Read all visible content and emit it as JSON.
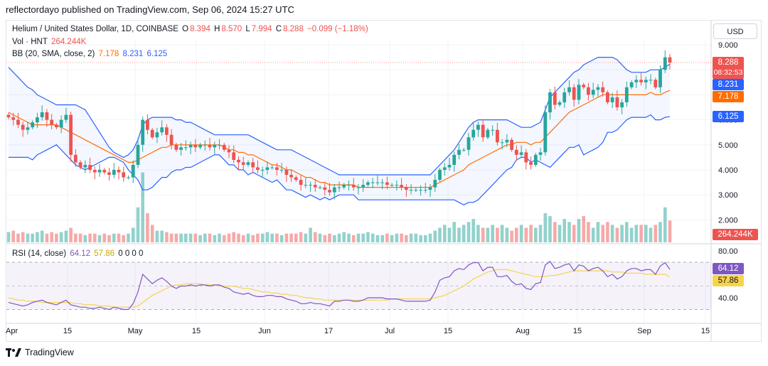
{
  "header": {
    "text": "reflectordayo published on TradingView.com, Sep 06, 2024 15:27 UTC"
  },
  "legend": {
    "symbol": "Helium / United States Dollar, 1D, COINBASE",
    "ohlc": {
      "o_label": "O",
      "o": "8.394",
      "h_label": "H",
      "h": "8.570",
      "l_label": "L",
      "l": "7.994",
      "c_label": "C",
      "c": "8.288",
      "chg": "−0.099 (−1.18%)"
    },
    "vol_label": "Vol · HNT",
    "vol_value": "264.244K",
    "bb_label": "BB (20, SMA, close, 2)",
    "bb_basis": "7.178",
    "bb_upper": "8.231",
    "bb_lower": "6.125",
    "rsi_label": "RSI (14, close)",
    "rsi_value": "64.12",
    "rsi_ma": "57.86",
    "rsi_extra": "0 0 0 0"
  },
  "currency_button": "USD",
  "price_tags": {
    "last": "8.288",
    "countdown": "08:32:53",
    "upper": "8.231",
    "basis": "7.178",
    "lower": "6.125",
    "volume": "264.244K",
    "rsi": "64.12",
    "rsi_ma": "57.86"
  },
  "footer": {
    "brand": "TradingView"
  },
  "colors": {
    "up": "#26a69a",
    "down": "#ef5350",
    "bb_band": "#2962ff",
    "bb_basis": "#ff6d00",
    "rsi": "#7e57c2",
    "rsi_ma": "#f7d44c"
  },
  "chart_data": [
    {
      "type": "candlestick",
      "title": "Helium / United States Dollar, 1D, COINBASE",
      "ylim": [
        2.0,
        9.0
      ],
      "y_ticks": [
        "9.000",
        "8.000",
        "7.000",
        "6.000",
        "5.000",
        "4.000",
        "3.000",
        "2.000"
      ],
      "x_ticks": [
        "Apr",
        "15",
        "May",
        "15",
        "Jun",
        "17",
        "Jul",
        "15",
        "Aug",
        "15",
        "Sep",
        "15"
      ],
      "close": [
        6.1,
        6.0,
        5.8,
        5.6,
        5.7,
        5.9,
        6.1,
        6.3,
        6.0,
        5.8,
        5.7,
        6.0,
        6.2,
        4.6,
        4.3,
        4.1,
        4.2,
        4.0,
        3.9,
        4.0,
        3.9,
        3.8,
        4.0,
        3.9,
        3.7,
        3.7,
        4.2,
        5.0,
        6.0,
        5.6,
        5.3,
        5.5,
        5.7,
        5.4,
        5.0,
        4.8,
        4.9,
        4.9,
        5.0,
        4.9,
        5.0,
        5.0,
        4.9,
        5.0,
        5.0,
        4.8,
        4.7,
        4.4,
        4.3,
        4.2,
        4.3,
        4.1,
        4.0,
        4.0,
        4.1,
        4.1,
        4.0,
        4.0,
        3.8,
        3.7,
        3.6,
        3.4,
        3.4,
        3.4,
        3.3,
        3.3,
        3.2,
        3.1,
        3.3,
        3.3,
        3.4,
        3.4,
        3.3,
        3.3,
        3.4,
        3.5,
        3.5,
        3.5,
        3.5,
        3.4,
        3.4,
        3.4,
        3.3,
        3.2,
        3.2,
        3.2,
        3.2,
        3.2,
        3.3,
        3.6,
        4.0,
        4.1,
        4.2,
        4.6,
        4.8,
        4.8,
        5.3,
        5.6,
        5.8,
        5.3,
        5.6,
        5.6,
        5.1,
        5.1,
        5.2,
        4.8,
        4.6,
        4.7,
        4.3,
        4.2,
        4.6,
        4.7,
        6.3,
        7.1,
        6.6,
        6.7,
        7.1,
        7.3,
        6.8,
        7.4,
        7.3,
        7.0,
        7.2,
        7.3,
        7.1,
        6.7,
        6.9,
        6.5,
        6.7,
        7.3,
        7.5,
        7.6,
        7.5,
        7.6,
        7.6,
        7.3,
        8.0,
        8.5,
        8.29
      ],
      "series": [
        {
          "name": "BB upper",
          "values": [
            8.1,
            7.9,
            7.7,
            7.5,
            7.3,
            7.2,
            7.0,
            6.9,
            6.8,
            6.7,
            6.6,
            6.6,
            6.6,
            6.6,
            6.6,
            6.5,
            6.4,
            6.1,
            5.8,
            5.5,
            5.2,
            4.9,
            4.7,
            4.6,
            4.5,
            4.6,
            4.8,
            5.2,
            5.8,
            6.0,
            6.1,
            6.1,
            6.1,
            6.1,
            6.1,
            6.0,
            6.0,
            5.9,
            5.9,
            5.8,
            5.7,
            5.6,
            5.5,
            5.4,
            5.4,
            5.4,
            5.4,
            5.4,
            5.4,
            5.4,
            5.4,
            5.3,
            5.2,
            5.1,
            5.0,
            4.9,
            4.8,
            4.8,
            4.8,
            4.8,
            4.7,
            4.6,
            4.5,
            4.4,
            4.3,
            4.2,
            4.1,
            4.0,
            3.9,
            3.8,
            3.8,
            3.8,
            3.8,
            3.8,
            3.8,
            3.8,
            3.8,
            3.8,
            3.8,
            3.8,
            3.8,
            3.8,
            3.8,
            3.8,
            3.8,
            3.8,
            3.8,
            3.8,
            3.8,
            4.0,
            4.2,
            4.4,
            4.6,
            4.8,
            5.1,
            5.4,
            5.7,
            5.9,
            6.0,
            6.0,
            6.0,
            6.0,
            6.0,
            6.0,
            6.0,
            5.9,
            5.8,
            5.7,
            5.7,
            5.7,
            5.8,
            5.9,
            6.4,
            6.9,
            7.1,
            7.3,
            7.5,
            7.7,
            7.9,
            8.0,
            8.2,
            8.3,
            8.4,
            8.5,
            8.5,
            8.5,
            8.5,
            8.4,
            8.2,
            8.0,
            7.9,
            7.9,
            7.9,
            7.9,
            8.0,
            8.0,
            8.0,
            8.1,
            8.231
          ]
        },
        {
          "name": "BB basis",
          "values": [
            6.3,
            6.2,
            6.1,
            6.0,
            5.9,
            5.8,
            5.8,
            5.8,
            5.8,
            5.8,
            5.8,
            5.7,
            5.6,
            5.5,
            5.4,
            5.3,
            5.2,
            5.1,
            5.0,
            4.9,
            4.8,
            4.7,
            4.6,
            4.5,
            4.4,
            4.3,
            4.3,
            4.4,
            4.5,
            4.6,
            4.7,
            4.8,
            4.9,
            4.9,
            5.0,
            5.0,
            5.0,
            5.0,
            5.0,
            5.0,
            5.0,
            5.0,
            5.0,
            5.0,
            5.0,
            4.9,
            4.8,
            4.8,
            4.7,
            4.7,
            4.6,
            4.6,
            4.5,
            4.4,
            4.3,
            4.2,
            4.2,
            4.1,
            4.0,
            4.0,
            3.9,
            3.8,
            3.7,
            3.7,
            3.6,
            3.5,
            3.5,
            3.4,
            3.4,
            3.4,
            3.4,
            3.4,
            3.4,
            3.3,
            3.3,
            3.3,
            3.3,
            3.3,
            3.3,
            3.3,
            3.3,
            3.3,
            3.3,
            3.3,
            3.3,
            3.3,
            3.3,
            3.3,
            3.3,
            3.4,
            3.5,
            3.6,
            3.7,
            3.8,
            3.9,
            4.0,
            4.2,
            4.3,
            4.4,
            4.5,
            4.6,
            4.7,
            4.8,
            4.9,
            5.0,
            5.0,
            5.1,
            5.1,
            5.1,
            5.0,
            5.1,
            5.1,
            5.3,
            5.5,
            5.7,
            5.9,
            6.1,
            6.3,
            6.4,
            6.5,
            6.6,
            6.7,
            6.8,
            6.9,
            7.0,
            7.0,
            7.0,
            7.0,
            7.0,
            7.0,
            7.0,
            7.0,
            7.0,
            7.0,
            7.1,
            7.0,
            7.0,
            7.1,
            7.178
          ]
        },
        {
          "name": "BB lower",
          "values": [
            4.5,
            4.5,
            4.5,
            4.5,
            4.5,
            4.4,
            4.6,
            4.7,
            4.8,
            4.9,
            5.0,
            4.8,
            4.6,
            4.4,
            4.2,
            4.1,
            4.0,
            4.1,
            4.2,
            4.3,
            4.4,
            4.5,
            4.5,
            4.4,
            4.3,
            4.0,
            3.8,
            3.6,
            3.2,
            3.2,
            3.3,
            3.5,
            3.7,
            3.7,
            3.9,
            4.0,
            4.0,
            4.1,
            4.1,
            4.2,
            4.3,
            4.4,
            4.5,
            4.6,
            4.6,
            4.4,
            4.2,
            4.2,
            4.0,
            4.0,
            3.8,
            3.9,
            3.8,
            3.7,
            3.6,
            3.5,
            3.6,
            3.4,
            3.2,
            3.2,
            3.1,
            3.0,
            2.9,
            3.0,
            2.9,
            2.8,
            2.9,
            2.8,
            2.9,
            3.0,
            3.0,
            3.0,
            3.0,
            2.8,
            2.8,
            2.8,
            2.8,
            2.8,
            2.8,
            2.8,
            2.8,
            2.8,
            2.8,
            2.8,
            2.8,
            2.8,
            2.8,
            2.8,
            2.8,
            2.8,
            2.8,
            2.8,
            2.8,
            2.8,
            2.7,
            2.6,
            2.7,
            2.7,
            2.8,
            3.0,
            3.2,
            3.4,
            3.6,
            3.8,
            4.0,
            4.1,
            4.4,
            4.5,
            4.5,
            4.3,
            4.4,
            4.3,
            4.2,
            4.1,
            4.3,
            4.5,
            4.7,
            4.9,
            4.9,
            5.0,
            4.6,
            4.7,
            4.8,
            4.9,
            5.1,
            5.5,
            5.5,
            5.6,
            5.8,
            6.0,
            6.1,
            6.1,
            6.1,
            6.1,
            6.2,
            6.0,
            6.0,
            6.1,
            6.125
          ]
        },
        {
          "name": "Vol · HNT",
          "values": [
            0.35,
            0.4,
            0.3,
            0.35,
            0.3,
            0.3,
            0.35,
            0.4,
            0.3,
            0.35,
            0.3,
            0.35,
            0.4,
            0.5,
            0.3,
            0.3,
            0.25,
            0.3,
            0.3,
            0.25,
            0.3,
            0.25,
            0.3,
            0.3,
            0.25,
            0.3,
            0.5,
            1.2,
            2.4,
            1.0,
            0.6,
            0.4,
            0.4,
            0.35,
            0.3,
            0.3,
            0.3,
            0.3,
            0.3,
            0.3,
            0.25,
            0.3,
            0.3,
            0.25,
            0.3,
            0.25,
            0.3,
            0.35,
            0.3,
            0.25,
            0.3,
            0.25,
            0.3,
            0.3,
            0.35,
            0.3,
            0.3,
            0.25,
            0.3,
            0.3,
            0.3,
            0.35,
            0.3,
            0.5,
            0.35,
            0.3,
            0.25,
            0.3,
            0.25,
            0.3,
            0.35,
            0.3,
            0.25,
            0.3,
            0.3,
            0.35,
            0.3,
            0.25,
            0.25,
            0.3,
            0.25,
            0.3,
            0.3,
            0.25,
            0.3,
            0.3,
            0.25,
            0.25,
            0.3,
            0.4,
            0.5,
            0.6,
            0.5,
            0.7,
            0.5,
            0.6,
            0.7,
            0.8,
            0.6,
            0.5,
            0.5,
            0.6,
            0.5,
            0.6,
            0.5,
            0.4,
            0.5,
            0.6,
            0.5,
            0.6,
            0.5,
            0.6,
            1.0,
            0.9,
            0.7,
            0.6,
            0.8,
            0.7,
            0.6,
            0.8,
            0.9,
            0.7,
            0.5,
            0.7,
            0.6,
            0.7,
            0.6,
            0.5,
            0.6,
            0.7,
            0.5,
            0.6,
            0.6,
            0.6,
            0.5,
            0.6,
            0.7,
            1.2,
            0.75
          ]
        }
      ]
    },
    {
      "type": "line",
      "title": "RSI (14, close)",
      "ylim": [
        30,
        82
      ],
      "y_ticks": [
        "80.00",
        "40.00"
      ],
      "series": [
        {
          "name": "RSI",
          "values": [
            36,
            35,
            34,
            33,
            34,
            36,
            37,
            38,
            36,
            35,
            34,
            36,
            38,
            34,
            33,
            32,
            32,
            31,
            31,
            32,
            31,
            30,
            32,
            31,
            30,
            30,
            35,
            45,
            60,
            56,
            52,
            55,
            57,
            54,
            50,
            48,
            50,
            50,
            51,
            50,
            51,
            51,
            50,
            51,
            51,
            49,
            48,
            45,
            44,
            43,
            44,
            42,
            41,
            41,
            42,
            42,
            41,
            41,
            39,
            38,
            37,
            35,
            35,
            36,
            35,
            35,
            34,
            33,
            37,
            37,
            38,
            38,
            37,
            37,
            38,
            40,
            40,
            40,
            40,
            39,
            39,
            39,
            38,
            37,
            37,
            37,
            37,
            37,
            38,
            45,
            55,
            57,
            58,
            63,
            65,
            64,
            68,
            70,
            70,
            63,
            66,
            66,
            58,
            58,
            59,
            54,
            51,
            52,
            48,
            47,
            52,
            53,
            68,
            71,
            65,
            66,
            68,
            69,
            63,
            68,
            67,
            63,
            65,
            66,
            63,
            58,
            60,
            56,
            58,
            63,
            65,
            65,
            63,
            64,
            64,
            60,
            67,
            70,
            64.12
          ]
        },
        {
          "name": "RSI MA",
          "values": [
            40,
            39,
            38,
            38,
            37,
            37,
            37,
            36,
            36,
            36,
            36,
            36,
            36,
            36,
            35,
            35,
            34,
            34,
            34,
            33,
            33,
            33,
            32,
            32,
            32,
            32,
            32,
            33,
            36,
            39,
            42,
            44,
            46,
            48,
            50,
            51,
            51,
            52,
            52,
            52,
            52,
            51,
            51,
            51,
            50,
            50,
            50,
            50,
            49,
            48,
            48,
            47,
            46,
            45,
            45,
            44,
            44,
            43,
            43,
            42,
            42,
            41,
            40,
            40,
            39,
            39,
            38,
            38,
            38,
            38,
            38,
            38,
            38,
            38,
            38,
            38,
            38,
            38,
            38,
            38,
            39,
            39,
            39,
            39,
            39,
            39,
            39,
            39,
            39,
            40,
            41,
            42,
            44,
            46,
            48,
            50,
            53,
            56,
            58,
            60,
            62,
            63,
            64,
            64,
            64,
            63,
            62,
            61,
            60,
            59,
            58,
            58,
            58,
            59,
            59,
            60,
            61,
            62,
            63,
            63,
            63,
            63,
            63,
            63,
            63,
            63,
            62,
            62,
            62,
            61,
            61,
            61,
            61,
            60,
            60,
            60,
            60,
            60,
            57.86
          ]
        }
      ]
    }
  ]
}
